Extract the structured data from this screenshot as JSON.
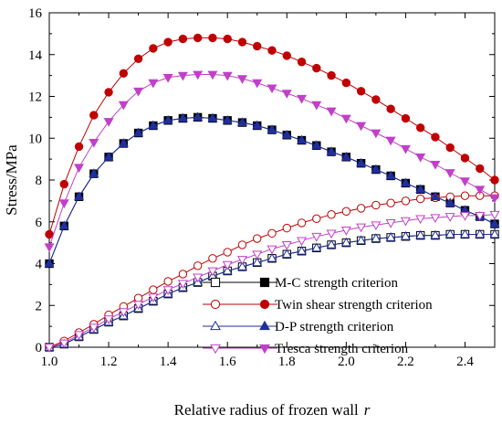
{
  "chart_data": {
    "type": "line",
    "xlabel": "Relative radius of frozen wall",
    "xlabel_var": "r",
    "ylabel": "Stress/MPa",
    "xlim": [
      1.0,
      2.5
    ],
    "ylim": [
      0,
      16
    ],
    "x_ticks": [
      "1.0",
      "1.2",
      "1.4",
      "1.6",
      "1.8",
      "2.0",
      "2.2",
      "2.4"
    ],
    "y_ticks": [
      "0",
      "2",
      "4",
      "6",
      "8",
      "10",
      "12",
      "14",
      "16"
    ],
    "grid": false,
    "legend_position": "lower-right",
    "x": [
      1.0,
      1.05,
      1.1,
      1.15,
      1.2,
      1.25,
      1.3,
      1.35,
      1.4,
      1.45,
      1.5,
      1.55,
      1.6,
      1.65,
      1.7,
      1.75,
      1.8,
      1.85,
      1.9,
      1.95,
      2.0,
      2.05,
      2.1,
      2.15,
      2.2,
      2.25,
      2.3,
      2.35,
      2.4,
      2.45,
      2.5
    ],
    "series": [
      {
        "name": "M-C strength criterion",
        "color": "#000000",
        "marker": "square",
        "open": [
          0.0,
          0.15,
          0.5,
          0.85,
          1.2,
          1.5,
          1.85,
          2.2,
          2.55,
          2.85,
          3.1,
          3.4,
          3.65,
          3.85,
          4.05,
          4.25,
          4.45,
          4.6,
          4.75,
          4.9,
          5.0,
          5.1,
          5.2,
          5.25,
          5.3,
          5.35,
          5.35,
          5.4,
          5.4,
          5.4,
          5.4
        ],
        "filled": [
          4.0,
          5.8,
          7.2,
          8.3,
          9.1,
          9.75,
          10.25,
          10.6,
          10.85,
          10.95,
          11.0,
          10.95,
          10.85,
          10.75,
          10.6,
          10.4,
          10.15,
          9.9,
          9.65,
          9.35,
          9.1,
          8.8,
          8.5,
          8.2,
          7.85,
          7.55,
          7.2,
          6.9,
          6.55,
          6.25,
          5.9
        ]
      },
      {
        "name": "Twin shear strength criterion",
        "color": "#c00000",
        "marker": "circle",
        "open": [
          0.0,
          0.3,
          0.7,
          1.1,
          1.55,
          1.95,
          2.35,
          2.75,
          3.15,
          3.5,
          3.9,
          4.25,
          4.55,
          4.9,
          5.2,
          5.45,
          5.7,
          5.95,
          6.15,
          6.35,
          6.5,
          6.65,
          6.8,
          6.9,
          7.0,
          7.1,
          7.15,
          7.2,
          7.25,
          7.25,
          7.25
        ],
        "filled": [
          5.4,
          7.8,
          9.6,
          11.1,
          12.2,
          13.1,
          13.8,
          14.3,
          14.6,
          14.75,
          14.8,
          14.8,
          14.75,
          14.6,
          14.4,
          14.2,
          13.95,
          13.65,
          13.35,
          13.0,
          12.65,
          12.25,
          11.85,
          11.4,
          10.95,
          10.5,
          10.05,
          9.55,
          9.05,
          8.55,
          8.0
        ]
      },
      {
        "name": "D-P strength criterion",
        "color": "#1f2f9e",
        "marker": "triangle-up",
        "open": [
          0.0,
          0.15,
          0.5,
          0.85,
          1.2,
          1.5,
          1.85,
          2.2,
          2.55,
          2.85,
          3.1,
          3.4,
          3.65,
          3.85,
          4.05,
          4.25,
          4.45,
          4.6,
          4.75,
          4.9,
          5.0,
          5.1,
          5.2,
          5.25,
          5.3,
          5.35,
          5.35,
          5.4,
          5.4,
          5.4,
          5.4
        ],
        "filled": [
          4.0,
          5.8,
          7.2,
          8.3,
          9.1,
          9.75,
          10.25,
          10.6,
          10.85,
          10.95,
          11.0,
          10.95,
          10.85,
          10.75,
          10.6,
          10.4,
          10.15,
          9.9,
          9.65,
          9.35,
          9.1,
          8.8,
          8.5,
          8.2,
          7.85,
          7.55,
          7.2,
          6.9,
          6.55,
          6.25,
          5.9
        ]
      },
      {
        "name": "Tresca strength criterion",
        "color": "#c040c8",
        "marker": "triangle-down",
        "open": [
          0.0,
          0.2,
          0.6,
          0.95,
          1.35,
          1.7,
          2.05,
          2.4,
          2.75,
          3.05,
          3.35,
          3.65,
          3.95,
          4.2,
          4.45,
          4.7,
          4.9,
          5.1,
          5.3,
          5.45,
          5.6,
          5.75,
          5.85,
          5.95,
          6.05,
          6.15,
          6.2,
          6.25,
          6.3,
          6.3,
          6.35
        ],
        "filled": [
          4.8,
          6.9,
          8.6,
          9.8,
          10.8,
          11.6,
          12.25,
          12.65,
          12.9,
          13.0,
          13.05,
          13.05,
          13.0,
          12.85,
          12.65,
          12.4,
          12.15,
          11.9,
          11.6,
          11.3,
          10.95,
          10.6,
          10.25,
          9.9,
          9.5,
          9.1,
          8.75,
          8.35,
          7.95,
          7.55,
          7.15
        ]
      }
    ]
  }
}
